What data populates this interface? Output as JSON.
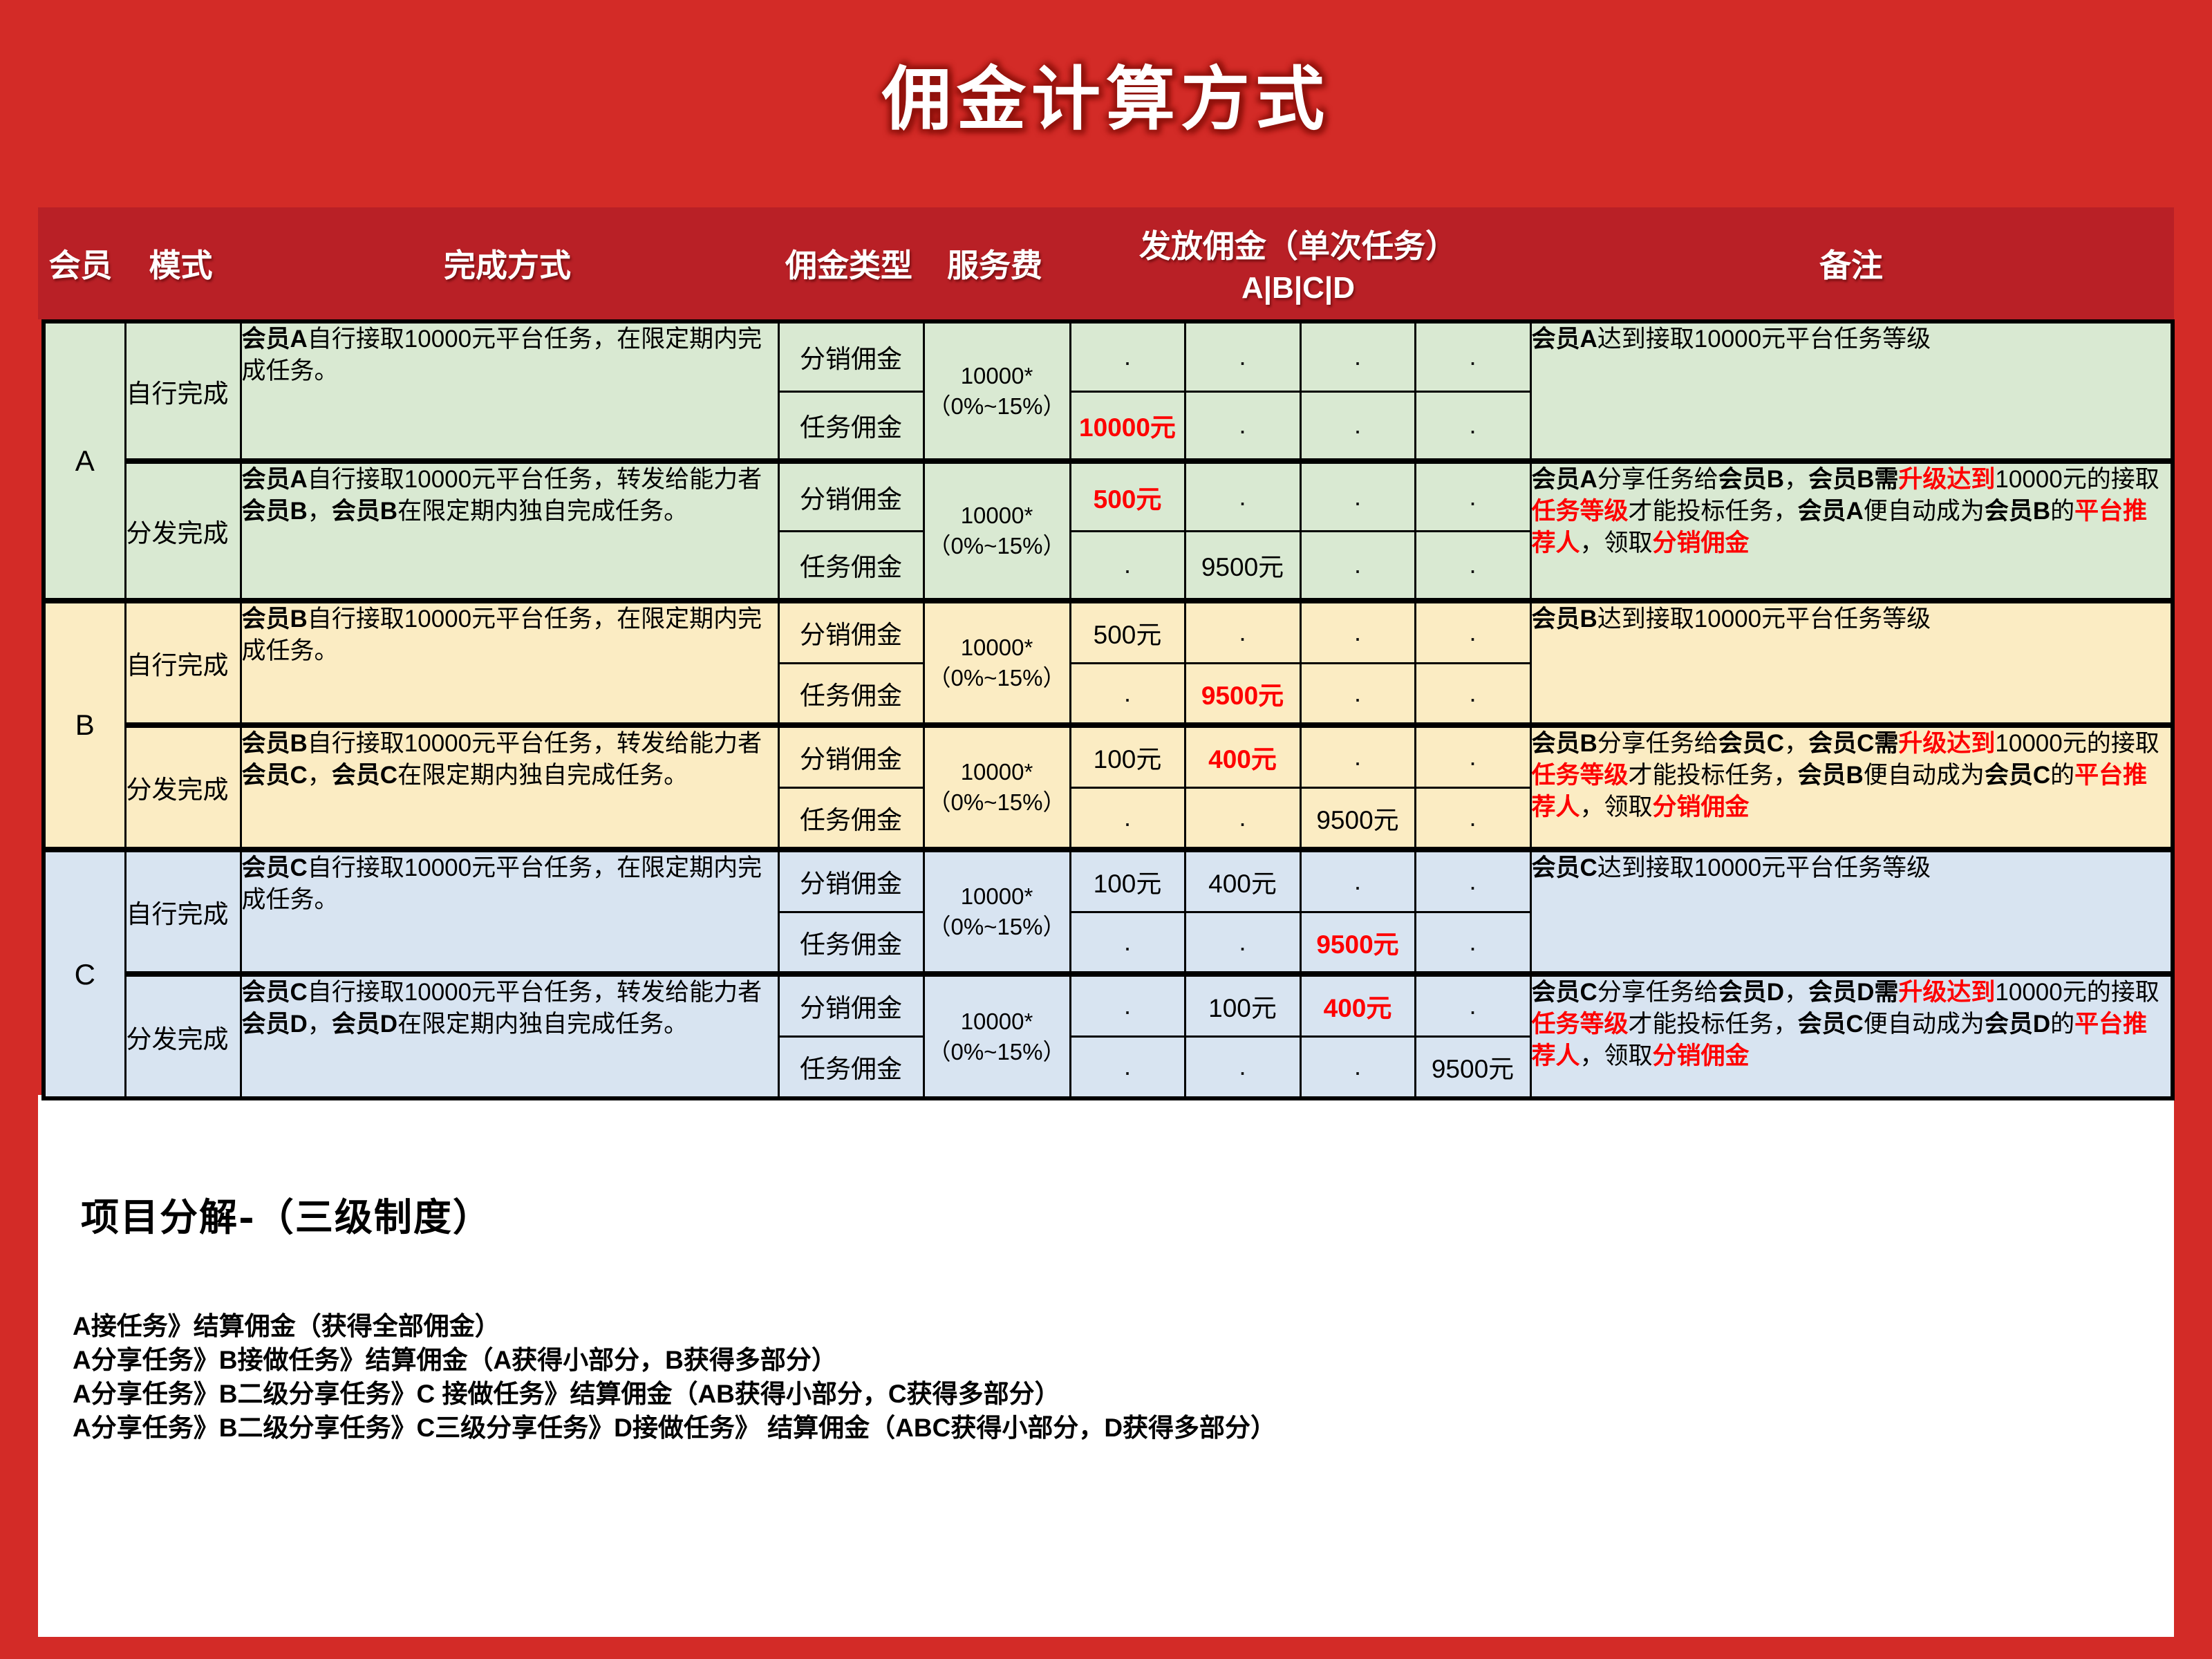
{
  "page": {
    "title": "佣金计算方式",
    "background": "#d32b27",
    "header_background": "#b92026",
    "panel_background": "#ffffff",
    "accent_red": "#fe0000"
  },
  "table": {
    "headers": {
      "member": "会员",
      "mode": "模式",
      "method": "完成方式",
      "commission_type": "佣金类型",
      "service_fee": "服务费",
      "payout_line1": "发放佣金（单次任务）",
      "payout_line2": "A|B|C|D",
      "remark": "备注"
    },
    "sections": [
      {
        "member": "A",
        "color": "#d9e9d2",
        "modes": [
          {
            "mode": "自行完成",
            "method": [
              {
                "t": "会员A",
                "s": "b"
              },
              {
                "t": "自行接取10000元平台任务，在限定期内完成任务。",
                "s": ""
              }
            ],
            "fee": [
              "10000*",
              "（0%~15%）"
            ],
            "rows": [
              {
                "type": "分销佣金",
                "cells": [
                  {
                    "text": ".",
                    "style": "dot"
                  },
                  {
                    "text": ".",
                    "style": "dot"
                  },
                  {
                    "text": ".",
                    "style": "dot"
                  },
                  {
                    "text": ".",
                    "style": "dot"
                  }
                ]
              },
              {
                "type": "任务佣金",
                "cells": [
                  {
                    "text": "10000元",
                    "style": "red"
                  },
                  {
                    "text": ".",
                    "style": "dot"
                  },
                  {
                    "text": ".",
                    "style": "dot"
                  },
                  {
                    "text": ".",
                    "style": "dot"
                  }
                ]
              }
            ],
            "remark": [
              {
                "t": "会员A",
                "s": "b"
              },
              {
                "t": "达到接取10000元平台任务等级",
                "s": ""
              }
            ]
          },
          {
            "mode": "分发完成",
            "method": [
              {
                "t": "会员A",
                "s": "b"
              },
              {
                "t": "自行接取10000元平台任务，转发给能力者",
                "s": ""
              },
              {
                "t": "会员B",
                "s": "b"
              },
              {
                "t": "，",
                "s": ""
              },
              {
                "t": "会员B",
                "s": "b"
              },
              {
                "t": "在限定期内独自完成任务。",
                "s": ""
              }
            ],
            "fee": [
              "10000*",
              "（0%~15%）"
            ],
            "rows": [
              {
                "type": "分销佣金",
                "cells": [
                  {
                    "text": "500元",
                    "style": "red"
                  },
                  {
                    "text": ".",
                    "style": "dot"
                  },
                  {
                    "text": ".",
                    "style": "dot"
                  },
                  {
                    "text": ".",
                    "style": "dot"
                  }
                ]
              },
              {
                "type": "任务佣金",
                "cells": [
                  {
                    "text": ".",
                    "style": "dot"
                  },
                  {
                    "text": "9500元",
                    "style": "plain"
                  },
                  {
                    "text": ".",
                    "style": "dot"
                  },
                  {
                    "text": ".",
                    "style": "dot"
                  }
                ]
              }
            ],
            "remark": [
              {
                "t": "会员A",
                "s": "b"
              },
              {
                "t": "分享任务给",
                "s": ""
              },
              {
                "t": "会员B",
                "s": "b"
              },
              {
                "t": "，",
                "s": ""
              },
              {
                "t": "会员B需",
                "s": "b"
              },
              {
                "t": "升级达到",
                "s": "rb"
              },
              {
                "t": "10000元的接取",
                "s": ""
              },
              {
                "t": "任务等级",
                "s": "rb"
              },
              {
                "t": "才能投标任务，",
                "s": ""
              },
              {
                "t": "会员A",
                "s": "b"
              },
              {
                "t": "便自动成为",
                "s": ""
              },
              {
                "t": "会员B",
                "s": "b"
              },
              {
                "t": "的",
                "s": ""
              },
              {
                "t": "平台推荐人",
                "s": "rb"
              },
              {
                "t": "，领取",
                "s": ""
              },
              {
                "t": "分销佣金",
                "s": "rb"
              }
            ]
          }
        ]
      },
      {
        "member": "B",
        "color": "#fbecc3",
        "modes": [
          {
            "mode": "自行完成",
            "method": [
              {
                "t": "会员B",
                "s": "b"
              },
              {
                "t": "自行接取10000元平台任务，在限定期内完成任务。",
                "s": ""
              }
            ],
            "fee": [
              "10000*",
              "（0%~15%）"
            ],
            "rows": [
              {
                "type": "分销佣金",
                "cells": [
                  {
                    "text": "500元",
                    "style": "plain"
                  },
                  {
                    "text": ".",
                    "style": "dot"
                  },
                  {
                    "text": ".",
                    "style": "dot"
                  },
                  {
                    "text": ".",
                    "style": "dot"
                  }
                ]
              },
              {
                "type": "任务佣金",
                "cells": [
                  {
                    "text": ".",
                    "style": "dot"
                  },
                  {
                    "text": "9500元",
                    "style": "red"
                  },
                  {
                    "text": ".",
                    "style": "dot"
                  },
                  {
                    "text": ".",
                    "style": "dot"
                  }
                ]
              }
            ],
            "remark": [
              {
                "t": "会员B",
                "s": "b"
              },
              {
                "t": "达到接取10000元平台任务等级",
                "s": ""
              }
            ]
          },
          {
            "mode": "分发完成",
            "method": [
              {
                "t": "会员B",
                "s": "b"
              },
              {
                "t": "自行接取10000元平台任务，转发给能力者",
                "s": ""
              },
              {
                "t": "会员C",
                "s": "b"
              },
              {
                "t": "，",
                "s": ""
              },
              {
                "t": "会员C",
                "s": "b"
              },
              {
                "t": "在限定期内独自完成任务。",
                "s": ""
              }
            ],
            "fee": [
              "10000*",
              "（0%~15%）"
            ],
            "rows": [
              {
                "type": "分销佣金",
                "cells": [
                  {
                    "text": "100元",
                    "style": "plain"
                  },
                  {
                    "text": "400元",
                    "style": "red"
                  },
                  {
                    "text": ".",
                    "style": "dot"
                  },
                  {
                    "text": ".",
                    "style": "dot"
                  }
                ]
              },
              {
                "type": "任务佣金",
                "cells": [
                  {
                    "text": ".",
                    "style": "dot"
                  },
                  {
                    "text": ".",
                    "style": "dot"
                  },
                  {
                    "text": "9500元",
                    "style": "plain"
                  },
                  {
                    "text": ".",
                    "style": "dot"
                  }
                ]
              }
            ],
            "remark": [
              {
                "t": "会员B",
                "s": "b"
              },
              {
                "t": "分享任务给",
                "s": ""
              },
              {
                "t": "会员C",
                "s": "b"
              },
              {
                "t": "，",
                "s": ""
              },
              {
                "t": "会员C需",
                "s": "b"
              },
              {
                "t": "升级达到",
                "s": "rb"
              },
              {
                "t": "10000元的接取",
                "s": ""
              },
              {
                "t": "任务等级",
                "s": "rb"
              },
              {
                "t": "才能投标任务，",
                "s": ""
              },
              {
                "t": "会员B",
                "s": "b"
              },
              {
                "t": "便自动成为",
                "s": ""
              },
              {
                "t": "会员C",
                "s": "b"
              },
              {
                "t": "的",
                "s": ""
              },
              {
                "t": "平台推荐人",
                "s": "rb"
              },
              {
                "t": "，领取",
                "s": ""
              },
              {
                "t": "分销佣金",
                "s": "rb"
              }
            ]
          }
        ]
      },
      {
        "member": "C",
        "color": "#d8e4f1",
        "modes": [
          {
            "mode": "自行完成",
            "method": [
              {
                "t": "会员C",
                "s": "b"
              },
              {
                "t": "自行接取10000元平台任务，在限定期内完成任务。",
                "s": ""
              }
            ],
            "fee": [
              "10000*",
              "（0%~15%）"
            ],
            "rows": [
              {
                "type": "分销佣金",
                "cells": [
                  {
                    "text": "100元",
                    "style": "plain"
                  },
                  {
                    "text": "400元",
                    "style": "plain"
                  },
                  {
                    "text": ".",
                    "style": "dot"
                  },
                  {
                    "text": ".",
                    "style": "dot"
                  }
                ]
              },
              {
                "type": "任务佣金",
                "cells": [
                  {
                    "text": ".",
                    "style": "dot"
                  },
                  {
                    "text": ".",
                    "style": "dot"
                  },
                  {
                    "text": "9500元",
                    "style": "red"
                  },
                  {
                    "text": ".",
                    "style": "dot"
                  }
                ]
              }
            ],
            "remark": [
              {
                "t": "会员C",
                "s": "b"
              },
              {
                "t": "达到接取10000元平台任务等级",
                "s": ""
              }
            ]
          },
          {
            "mode": "分发完成",
            "method": [
              {
                "t": "会员C",
                "s": "b"
              },
              {
                "t": "自行接取10000元平台任务，转发给能力者",
                "s": ""
              },
              {
                "t": "会员D",
                "s": "b"
              },
              {
                "t": "，",
                "s": ""
              },
              {
                "t": "会员D",
                "s": "b"
              },
              {
                "t": "在限定期内独自完成任务。",
                "s": ""
              }
            ],
            "fee": [
              "10000*",
              "（0%~15%）"
            ],
            "rows": [
              {
                "type": "分销佣金",
                "cells": [
                  {
                    "text": ".",
                    "style": "dot"
                  },
                  {
                    "text": "100元",
                    "style": "plain"
                  },
                  {
                    "text": "400元",
                    "style": "red"
                  },
                  {
                    "text": ".",
                    "style": "dot"
                  }
                ]
              },
              {
                "type": "任务佣金",
                "cells": [
                  {
                    "text": ".",
                    "style": "dot"
                  },
                  {
                    "text": ".",
                    "style": "dot"
                  },
                  {
                    "text": ".",
                    "style": "dot"
                  },
                  {
                    "text": "9500元",
                    "style": "plain"
                  }
                ]
              }
            ],
            "remark": [
              {
                "t": "会员C",
                "s": "b"
              },
              {
                "t": "分享任务给",
                "s": ""
              },
              {
                "t": "会员D",
                "s": "b"
              },
              {
                "t": "，",
                "s": ""
              },
              {
                "t": "会员D需",
                "s": "b"
              },
              {
                "t": "升级达到",
                "s": "rb"
              },
              {
                "t": "10000元的接取",
                "s": ""
              },
              {
                "t": "任务等级",
                "s": "rb"
              },
              {
                "t": "才能投标任务，",
                "s": ""
              },
              {
                "t": "会员C",
                "s": "b"
              },
              {
                "t": "便自动成为",
                "s": ""
              },
              {
                "t": "会员D",
                "s": "b"
              },
              {
                "t": "的",
                "s": ""
              },
              {
                "t": "平台推荐人",
                "s": "rb"
              },
              {
                "t": "，领取",
                "s": ""
              },
              {
                "t": "分销佣金",
                "s": "rb"
              }
            ]
          }
        ]
      }
    ]
  },
  "breakdown": {
    "title": "项目分解-（三级制度）",
    "lines": [
      "A接任务》结算佣金（获得全部佣金）",
      "A分享任务》B接做任务》结算佣金（A获得小部分，B获得多部分）",
      "A分享任务》B二级分享任务》C 接做任务》结算佣金（AB获得小部分，C获得多部分）",
      "A分享任务》B二级分享任务》C三级分享任务》D接做任务》 结算佣金（ABC获得小部分，D获得多部分）"
    ]
  }
}
